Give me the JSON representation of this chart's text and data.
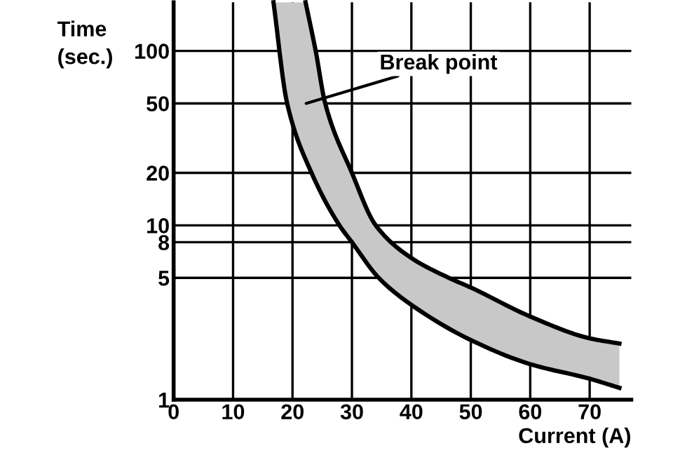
{
  "chart_data": {
    "type": "line",
    "xlabel": "Current (A)",
    "ylabel": "Time\n(sec.)",
    "xlim": [
      0,
      77
    ],
    "xticks": [
      0,
      10,
      20,
      30,
      40,
      50,
      60,
      70
    ],
    "ylim": [
      1,
      190
    ],
    "yticks": [
      1,
      5,
      8,
      10,
      20,
      50,
      100
    ],
    "log": "y",
    "grid": true,
    "marker": "none",
    "line_style": "solid",
    "series": [
      {
        "color": "#000000",
        "x": [
          16.8,
          19.1,
          23.2,
          27.9,
          30,
          34.5,
          40,
          50,
          60,
          70,
          75
        ],
        "values": [
          190,
          50,
          20,
          10,
          8,
          5,
          3.5,
          2.2,
          1.6,
          1.32,
          1.17
        ]
      },
      {
        "color": "#000000",
        "x": [
          22.2,
          23.9,
          25.5,
          30,
          34,
          40,
          46.3,
          50,
          60,
          70,
          75
        ],
        "values": [
          190,
          100,
          50,
          20,
          10,
          6.5,
          5,
          4.4,
          3.0,
          2.25,
          2.1
        ]
      }
    ],
    "annotations": [
      "Break point"
    ]
  }
}
